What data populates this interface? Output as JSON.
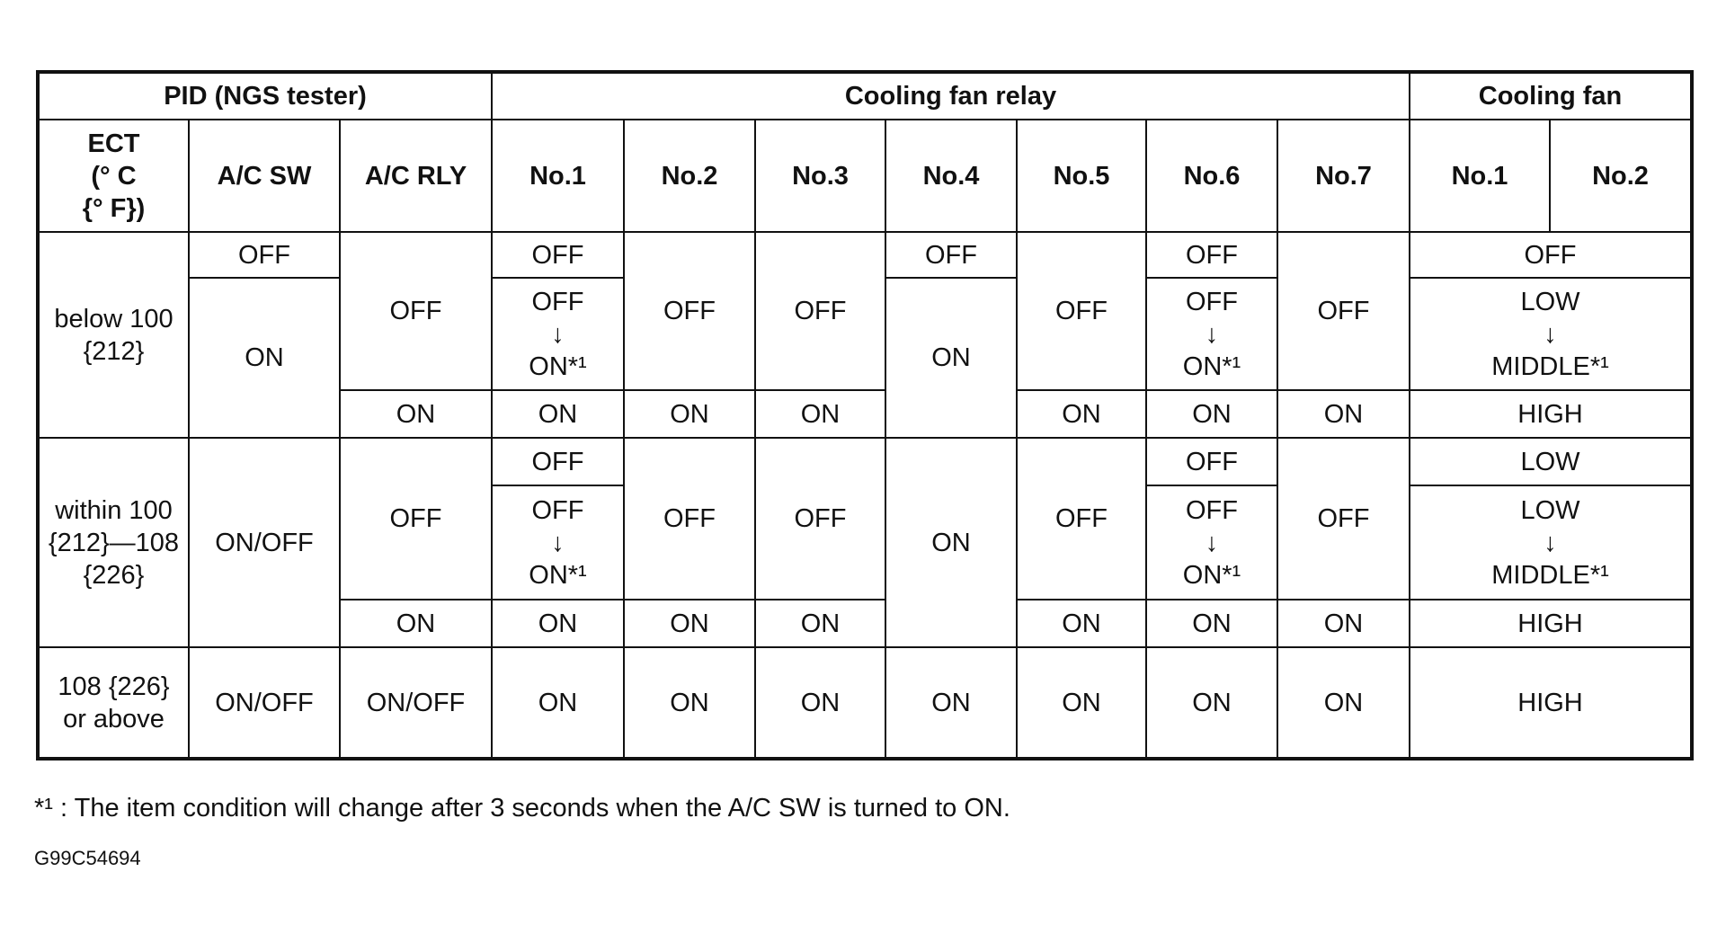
{
  "table": {
    "header_groups": [
      "PID (NGS tester)",
      "Cooling fan relay",
      "Cooling fan"
    ],
    "columns": [
      "ECT\n(° C\n{° F})",
      "A/C SW",
      "A/C RLY",
      "No.1",
      "No.2",
      "No.3",
      "No.4",
      "No.5",
      "No.6",
      "No.7",
      "No.1",
      "No.2"
    ],
    "rows": [
      [
        "below 100 {212}",
        "OFF",
        "OFF",
        "OFF",
        "OFF",
        "OFF",
        "OFF",
        "OFF",
        "OFF",
        "OFF",
        "OFF"
      ],
      [
        "ON",
        "OFF\n↓\nON*¹",
        "ON",
        "OFF\n↓\nON*¹",
        "LOW\n↓\nMIDDLE*¹"
      ],
      [
        "ON",
        "ON",
        "ON",
        "ON",
        "ON",
        "ON",
        "ON",
        "HIGH"
      ],
      [
        "within 100 {212}—108 {226}",
        "ON/OFF",
        "OFF",
        "OFF",
        "OFF",
        "OFF",
        "ON",
        "OFF",
        "OFF",
        "OFF",
        "LOW"
      ],
      [
        "OFF\n↓\nON*¹",
        "OFF\n↓\nON*¹",
        "LOW\n↓\nMIDDLE*¹"
      ],
      [
        "ON",
        "ON",
        "ON",
        "ON",
        "ON",
        "ON",
        "ON",
        "HIGH"
      ],
      [
        "108 {226} or above",
        "ON/OFF",
        "ON/OFF",
        "ON",
        "ON",
        "ON",
        "ON",
        "ON",
        "ON",
        "ON",
        "HIGH"
      ]
    ]
  },
  "footnote": {
    "marker": "*¹",
    "text": ": The item condition will change after 3 seconds when the A/C SW is turned to ON."
  },
  "figure_id": "G99C54694"
}
